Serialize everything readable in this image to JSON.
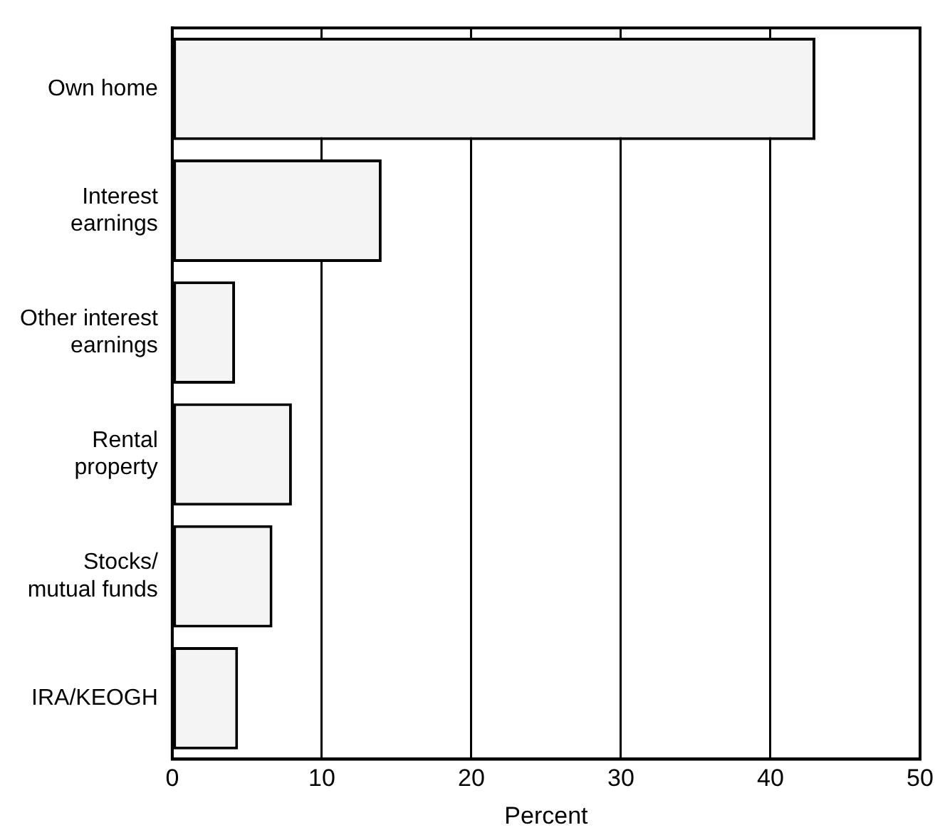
{
  "chart_data": {
    "type": "bar",
    "orientation": "horizontal",
    "xlabel": "Percent",
    "categories": [
      "Own home",
      "Interest earnings",
      "Other interest earnings",
      "Rental property",
      "Stocks/ mutual funds",
      "IRA/KEOGH"
    ],
    "values": [
      43,
      14,
      4.2,
      8,
      6.7,
      4.4
    ],
    "color": "#f4f4f4",
    "xlim": [
      0,
      50
    ],
    "xticks": [
      0,
      10,
      20,
      30,
      40,
      50
    ],
    "grid": "x"
  }
}
